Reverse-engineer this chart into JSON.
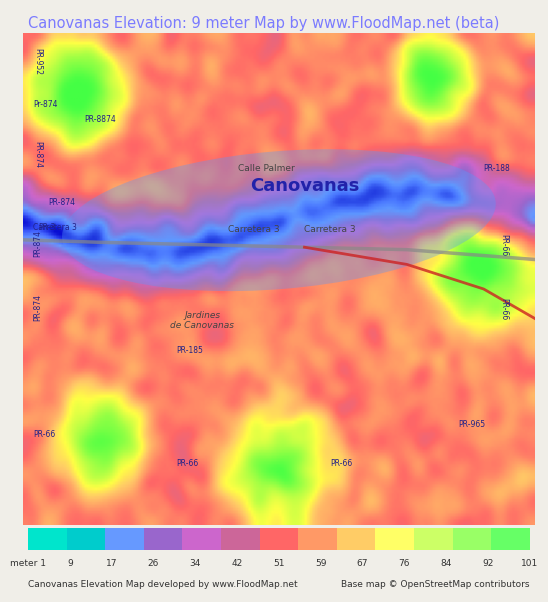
{
  "title": "Canovanas Elevation: 9 meter Map by www.FloodMap.net (beta)",
  "title_color": "#7b7bff",
  "title_fontsize": 10.5,
  "background_color": "#f0eee8",
  "map_bg_color": "#c8a0d8",
  "footer_left": "Canovanas Elevation Map developed by www.FloodMap.net",
  "footer_right": "Base map © OpenStreetMap contributors",
  "colorbar_labels": [
    "meter 1",
    "9",
    "17",
    "26",
    "34",
    "42",
    "51",
    "59",
    "67",
    "76",
    "84",
    "92",
    "101"
  ],
  "colorbar_colors": [
    "#00e5cc",
    "#6699ff",
    "#9966cc",
    "#cc66cc",
    "#cc6699",
    "#ff6666",
    "#ff9966",
    "#ffcc66",
    "#ffff66",
    "#ccff66",
    "#66ff66"
  ],
  "colorbar_colors_full": [
    "#00e5cc",
    "#00cccc",
    "#6699ff",
    "#9966cc",
    "#cc66cc",
    "#cc6699",
    "#ff6666",
    "#ff9966",
    "#ffcc66",
    "#ffff66",
    "#ccff66",
    "#99ff66",
    "#66ff66"
  ],
  "fig_width": 5.12,
  "fig_height": 5.82
}
